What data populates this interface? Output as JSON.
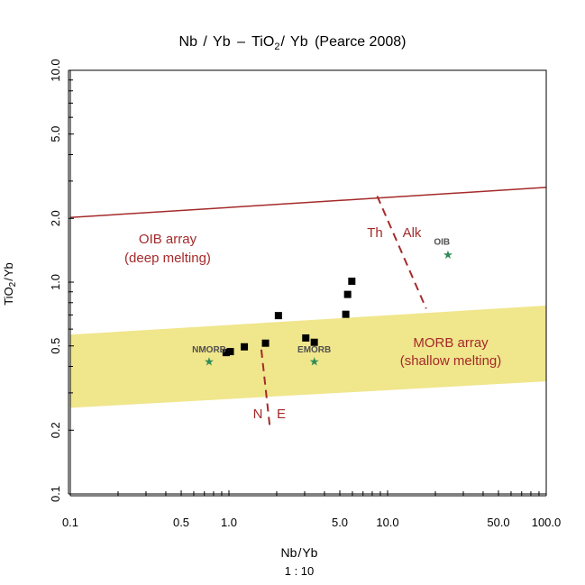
{
  "chart_data": {
    "type": "scatter",
    "title": {
      "a": "Nb",
      "b": "Yb",
      "c": "TiO",
      "sub": "2",
      "d": "Yb",
      "e": "(Pearce 2008)"
    },
    "xlabel": {
      "a": "Nb",
      "b": "Yb"
    },
    "xlabel_scale": "1 : 10",
    "ylabel": {
      "a": "TiO",
      "sub": "2",
      "b": "Yb"
    },
    "x_scale": "log",
    "y_scale": "log",
    "xlim": [
      0.1,
      100
    ],
    "ylim": [
      0.1,
      10
    ],
    "x_ticks": [
      0.1,
      0.5,
      1.0,
      5.0,
      10.0,
      50.0,
      100.0
    ],
    "x_tick_labels": [
      "0.1",
      "0.5",
      "1.0",
      "5.0",
      "10.0",
      "50.0",
      "100.0"
    ],
    "x_minor_ticks": [
      0.2,
      0.3,
      0.4,
      0.6,
      0.7,
      0.8,
      0.9,
      2,
      3,
      4,
      6,
      7,
      8,
      9,
      20,
      30,
      40,
      60,
      70,
      80,
      90
    ],
    "y_ticks": [
      0.1,
      0.2,
      0.5,
      1.0,
      2.0,
      5.0,
      10.0
    ],
    "y_tick_labels": [
      "0.1",
      "0.2",
      "0.5",
      "1.0",
      "2.0",
      "5.0",
      "10.0"
    ],
    "y_minor_ticks": [
      0.3,
      0.4,
      0.6,
      0.7,
      0.8,
      0.9,
      3,
      4,
      6,
      7,
      8,
      9
    ],
    "points": [
      {
        "x": 0.96,
        "y": 0.465
      },
      {
        "x": 1.02,
        "y": 0.47
      },
      {
        "x": 1.25,
        "y": 0.495
      },
      {
        "x": 1.7,
        "y": 0.515
      },
      {
        "x": 2.05,
        "y": 0.695
      },
      {
        "x": 3.05,
        "y": 0.545
      },
      {
        "x": 3.45,
        "y": 0.52
      },
      {
        "x": 5.45,
        "y": 0.705
      },
      {
        "x": 5.6,
        "y": 0.875
      },
      {
        "x": 5.95,
        "y": 1.01
      }
    ],
    "marker_color": "#000000",
    "morb_array": {
      "label_1": "MORB array",
      "label_2": "(shallow melting)",
      "fill": "#f0e68c",
      "lower": [
        [
          0.1,
          0.255
        ],
        [
          100,
          0.34
        ]
      ],
      "upper": [
        [
          0.1,
          0.565
        ],
        [
          100,
          0.775
        ]
      ]
    },
    "oib_array": {
      "label_1": "OIB array",
      "label_2": "(deep melting)",
      "color": "#a52a2a",
      "line": [
        [
          0.1,
          2.02
        ],
        [
          100,
          2.8
        ]
      ]
    },
    "ne_divider": {
      "label_n": "N",
      "label_e": "E",
      "line": [
        [
          1.6,
          0.48
        ],
        [
          1.82,
          0.2
        ]
      ]
    },
    "th_alk_divider": {
      "label_th": "Th",
      "label_alk": "Alk",
      "line": [
        [
          8.6,
          2.55
        ],
        [
          17.5,
          0.75
        ]
      ]
    },
    "reference_points": [
      {
        "label": "NMORB",
        "x": 0.75,
        "y": 0.42,
        "label_x": 0.75,
        "label_y": 0.465
      },
      {
        "label": "EMORB",
        "x": 3.45,
        "y": 0.42,
        "label_x": 3.45,
        "label_y": 0.465
      },
      {
        "label": "OIB",
        "x": 24,
        "y": 1.34,
        "label_x": 22,
        "label_y": 1.5
      }
    ],
    "reference_marker_color": "#2e8b57",
    "line_color": "#a52a2a"
  }
}
